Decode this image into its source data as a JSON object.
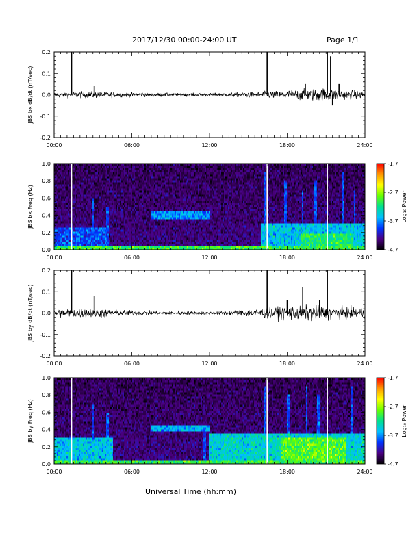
{
  "header": {
    "title": "2017/12/30  00:00-24:00 UT",
    "page": "Page 1/1"
  },
  "xaxis_title": "Universal Time (hh:mm)",
  "colorbar": {
    "label": "Log₁₀ Power",
    "ticks": [
      "-1.7",
      "-2.7",
      "-3.7",
      "-4.7"
    ],
    "colors": [
      "#ff0000",
      "#ff9900",
      "#ffff00",
      "#66ff00",
      "#00e090",
      "#00bfff",
      "#0033ff",
      "#4b0082",
      "#000000"
    ]
  },
  "chart_data": [
    {
      "type": "line",
      "ylabel": "JBS bx dB/dt (nT/sec)",
      "xlim": [
        0,
        24
      ],
      "ylim": [
        -0.2,
        0.2
      ],
      "xticks": [
        "00:00",
        "06:00",
        "12:00",
        "18:00",
        "24:00"
      ],
      "yticks": [
        "0.2",
        "0.1",
        "0.0",
        "-0.1",
        "-0.2"
      ],
      "noise_profile": [
        [
          0,
          0.009
        ],
        [
          3,
          0.011
        ],
        [
          5,
          0.008
        ],
        [
          8,
          0.006
        ],
        [
          12,
          0.005
        ],
        [
          15,
          0.009
        ],
        [
          17,
          0.012
        ],
        [
          19,
          0.018
        ],
        [
          21,
          0.022
        ],
        [
          22.5,
          0.016
        ],
        [
          24,
          0.012
        ]
      ],
      "spikes": [
        [
          1.35,
          0.2
        ],
        [
          3.1,
          0.04
        ],
        [
          16.45,
          0.2
        ],
        [
          19.4,
          0.05
        ],
        [
          21.1,
          0.2
        ],
        [
          21.35,
          0.18
        ],
        [
          21.5,
          -0.05
        ],
        [
          22.0,
          0.05
        ]
      ]
    },
    {
      "type": "heatmap",
      "ylabel": "JBS bx Freq (Hz)",
      "xlim": [
        0,
        24
      ],
      "ylim": [
        0,
        1.0
      ],
      "xticks": [
        "00:00",
        "06:00",
        "12:00",
        "18:00",
        "24:00"
      ],
      "yticks": [
        "1.0",
        "0.8",
        "0.6",
        "0.4",
        "0.2",
        "0.0"
      ],
      "value_range": [
        -4.7,
        -1.7
      ],
      "gaps": [
        1.35,
        16.45,
        21.1
      ],
      "features": [
        {
          "t0": 0,
          "t1": 24,
          "f0": 0,
          "f1": 0.04,
          "level": -3.0
        },
        {
          "t0": 0,
          "t1": 4,
          "f0": 0.04,
          "f1": 0.25,
          "level": -3.9
        },
        {
          "t0": 7.5,
          "t1": 12,
          "f0": 0.35,
          "f1": 0.45,
          "level": -3.7
        },
        {
          "t0": 16,
          "t1": 24,
          "f0": 0.04,
          "f1": 0.3,
          "level": -3.5
        },
        {
          "t0": 19,
          "t1": 23,
          "f0": 0.05,
          "f1": 0.2,
          "level": -3.1
        }
      ],
      "vertical_streaks": [
        [
          3.0,
          0.6
        ],
        [
          4.1,
          0.5
        ],
        [
          16.3,
          0.9
        ],
        [
          17.9,
          0.8
        ],
        [
          19.2,
          0.7
        ],
        [
          20.2,
          0.8
        ],
        [
          22.3,
          0.9
        ],
        [
          23.2,
          0.7
        ]
      ]
    },
    {
      "type": "line",
      "ylabel": "JBS by dB/dt (nT/sec)",
      "xlim": [
        0,
        24
      ],
      "ylim": [
        -0.2,
        0.2
      ],
      "xticks": [
        "00:00",
        "06:00",
        "12:00",
        "18:00",
        "24:00"
      ],
      "yticks": [
        "0.2",
        "0.1",
        "0.0",
        "-0.1",
        "-0.2"
      ],
      "noise_profile": [
        [
          0,
          0.014
        ],
        [
          3,
          0.016
        ],
        [
          5,
          0.01
        ],
        [
          8,
          0.007
        ],
        [
          12,
          0.005
        ],
        [
          14,
          0.009
        ],
        [
          16,
          0.016
        ],
        [
          18,
          0.022
        ],
        [
          20,
          0.026
        ],
        [
          22,
          0.02
        ],
        [
          24,
          0.016
        ]
      ],
      "spikes": [
        [
          1.35,
          0.2
        ],
        [
          3.1,
          0.08
        ],
        [
          16.45,
          0.2
        ],
        [
          19.2,
          0.12
        ],
        [
          21.1,
          0.2
        ],
        [
          20.5,
          0.06
        ],
        [
          18.0,
          0.06
        ]
      ]
    },
    {
      "type": "heatmap",
      "ylabel": "JBS by Freq (Hz)",
      "xlim": [
        0,
        24
      ],
      "ylim": [
        0,
        1.0
      ],
      "xticks": [
        "00:00",
        "06:00",
        "12:00",
        "18:00",
        "24:00"
      ],
      "yticks": [
        "1.0",
        "0.8",
        "0.6",
        "0.4",
        "0.2",
        "0.0"
      ],
      "value_range": [
        -4.7,
        -1.7
      ],
      "gaps": [
        1.35,
        16.45,
        21.1
      ],
      "features": [
        {
          "t0": 0,
          "t1": 24,
          "f0": 0,
          "f1": 0.05,
          "level": -3.0
        },
        {
          "t0": 0,
          "t1": 4.5,
          "f0": 0.05,
          "f1": 0.3,
          "level": -3.5
        },
        {
          "t0": 7.5,
          "t1": 12,
          "f0": 0.38,
          "f1": 0.46,
          "level": -3.6
        },
        {
          "t0": 12,
          "t1": 24,
          "f0": 0.05,
          "f1": 0.35,
          "level": -3.4
        },
        {
          "t0": 17.5,
          "t1": 22.5,
          "f0": 0.05,
          "f1": 0.3,
          "level": -2.9
        }
      ],
      "vertical_streaks": [
        [
          3.0,
          0.7
        ],
        [
          4.1,
          0.6
        ],
        [
          11.6,
          0.45
        ],
        [
          16.3,
          0.9
        ],
        [
          18.1,
          0.8
        ],
        [
          19.5,
          0.9
        ],
        [
          20.4,
          0.8
        ],
        [
          23.0,
          0.9
        ]
      ]
    }
  ]
}
